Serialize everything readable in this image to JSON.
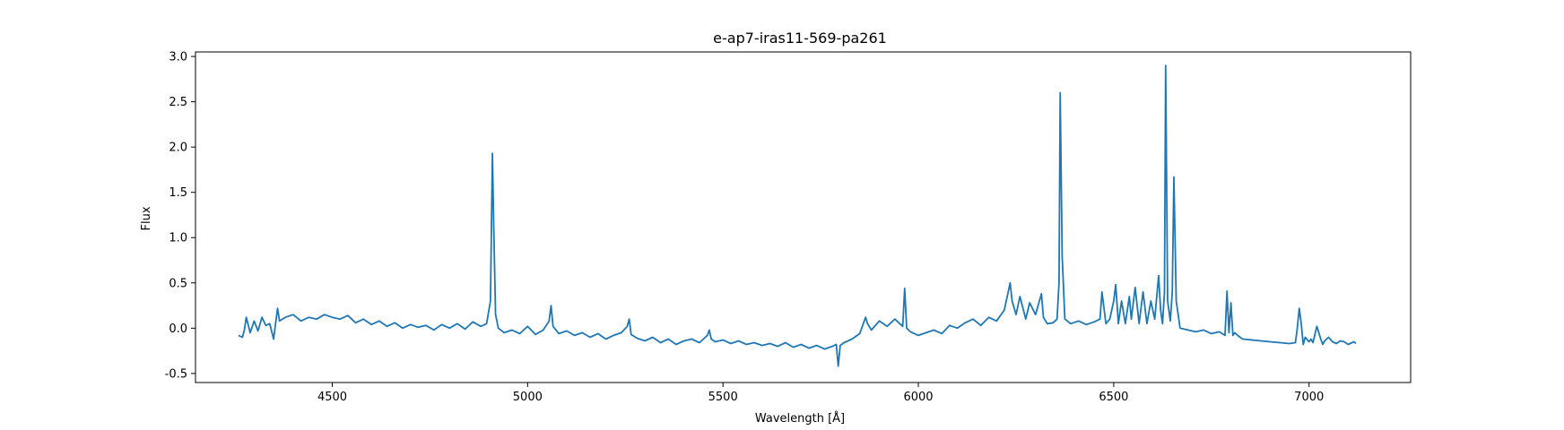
{
  "chart_data": {
    "type": "line",
    "title": "e-ap7-iras11-569-pa261",
    "xlabel": "Wavelength [Å]",
    "ylabel": "Flux",
    "xlim": [
      4150,
      7260
    ],
    "ylim": [
      -0.6,
      3.05
    ],
    "xticks": [
      4500,
      5000,
      5500,
      6000,
      6500,
      7000
    ],
    "yticks": [
      -0.5,
      0.0,
      0.5,
      1.0,
      1.5,
      2.0,
      2.5,
      3.0
    ],
    "grid": false,
    "line_color": "#1f77b4",
    "series": [
      {
        "x": [
          4260,
          4270,
          4275,
          4280,
          4290,
          4300,
          4310,
          4320,
          4330,
          4340,
          4350,
          4355,
          4360,
          4365,
          4380,
          4400,
          4420,
          4440,
          4460,
          4480,
          4500,
          4520,
          4540,
          4560,
          4580,
          4600,
          4620,
          4640,
          4660,
          4680,
          4700,
          4720,
          4740,
          4760,
          4780,
          4800,
          4820,
          4840,
          4860,
          4880,
          4895,
          4905,
          4910,
          4913,
          4918,
          4925,
          4940,
          4960,
          4980,
          5000,
          5020,
          5040,
          5055,
          5060,
          5065,
          5080,
          5100,
          5120,
          5140,
          5160,
          5180,
          5200,
          5220,
          5240,
          5255,
          5260,
          5265,
          5280,
          5300,
          5320,
          5340,
          5360,
          5380,
          5400,
          5420,
          5440,
          5460,
          5465,
          5470,
          5480,
          5500,
          5520,
          5540,
          5560,
          5580,
          5600,
          5620,
          5640,
          5660,
          5680,
          5700,
          5720,
          5740,
          5760,
          5780,
          5790,
          5795,
          5800,
          5810,
          5830,
          5850,
          5865,
          5870,
          5880,
          5900,
          5920,
          5940,
          5960,
          5965,
          5970,
          5980,
          6000,
          6020,
          6040,
          6060,
          6080,
          6100,
          6120,
          6140,
          6160,
          6180,
          6200,
          6220,
          6235,
          6240,
          6250,
          6260,
          6275,
          6285,
          6300,
          6315,
          6320,
          6330,
          6345,
          6355,
          6360,
          6363,
          6368,
          6375,
          6390,
          6410,
          6430,
          6450,
          6465,
          6470,
          6480,
          6490,
          6500,
          6505,
          6512,
          6520,
          6530,
          6540,
          6545,
          6555,
          6565,
          6575,
          6585,
          6595,
          6605,
          6615,
          6620,
          6625,
          6630,
          6633,
          6638,
          6645,
          6650,
          6654,
          6660,
          6670,
          6690,
          6710,
          6730,
          6750,
          6770,
          6785,
          6790,
          6795,
          6800,
          6805,
          6810,
          6820,
          6830,
          6900,
          6950,
          6965,
          6970,
          6975,
          6980,
          6985,
          6990,
          7000,
          7005,
          7010,
          7020,
          7030,
          7035,
          7040,
          7050,
          7060,
          7070,
          7080,
          7090,
          7100,
          7110,
          7115,
          7120
        ],
        "y": [
          -0.08,
          -0.1,
          -0.02,
          0.12,
          -0.05,
          0.08,
          -0.03,
          0.12,
          0.03,
          0.05,
          -0.12,
          0.05,
          0.22,
          0.08,
          0.12,
          0.15,
          0.08,
          0.12,
          0.1,
          0.15,
          0.12,
          0.1,
          0.14,
          0.06,
          0.1,
          0.04,
          0.08,
          0.02,
          0.06,
          0.0,
          0.04,
          0.01,
          0.03,
          -0.02,
          0.04,
          0.0,
          0.05,
          -0.01,
          0.07,
          0.02,
          0.05,
          0.3,
          1.93,
          1.2,
          0.15,
          0.0,
          -0.05,
          -0.02,
          -0.06,
          0.02,
          -0.07,
          -0.02,
          0.08,
          0.25,
          0.02,
          -0.06,
          -0.03,
          -0.08,
          -0.05,
          -0.1,
          -0.06,
          -0.12,
          -0.08,
          -0.05,
          0.02,
          0.1,
          -0.07,
          -0.11,
          -0.14,
          -0.1,
          -0.16,
          -0.12,
          -0.18,
          -0.14,
          -0.12,
          -0.16,
          -0.08,
          -0.02,
          -0.12,
          -0.15,
          -0.13,
          -0.17,
          -0.14,
          -0.18,
          -0.16,
          -0.19,
          -0.17,
          -0.2,
          -0.16,
          -0.21,
          -0.18,
          -0.22,
          -0.19,
          -0.23,
          -0.2,
          -0.18,
          -0.42,
          -0.19,
          -0.16,
          -0.12,
          -0.06,
          0.12,
          0.05,
          -0.02,
          0.08,
          0.02,
          0.1,
          0.02,
          0.44,
          0.0,
          -0.04,
          -0.08,
          -0.05,
          -0.02,
          -0.06,
          0.03,
          0.0,
          0.06,
          0.1,
          0.03,
          0.12,
          0.08,
          0.2,
          0.5,
          0.3,
          0.15,
          0.35,
          0.1,
          0.28,
          0.15,
          0.38,
          0.12,
          0.05,
          0.06,
          0.1,
          0.5,
          2.6,
          0.8,
          0.1,
          0.05,
          0.08,
          0.04,
          0.07,
          0.1,
          0.4,
          0.05,
          0.1,
          0.3,
          0.48,
          0.05,
          0.3,
          0.05,
          0.35,
          0.1,
          0.45,
          0.05,
          0.4,
          0.05,
          0.3,
          0.1,
          0.58,
          0.2,
          0.05,
          0.4,
          2.9,
          0.3,
          0.08,
          0.4,
          1.67,
          0.3,
          0.0,
          -0.02,
          -0.04,
          -0.02,
          -0.06,
          -0.04,
          -0.08,
          0.41,
          -0.05,
          0.28,
          -0.08,
          -0.05,
          -0.09,
          -0.12,
          -0.15,
          -0.17,
          -0.16,
          0.0,
          0.22,
          0.05,
          -0.18,
          -0.1,
          -0.15,
          -0.12,
          -0.16,
          0.02,
          -0.12,
          -0.18,
          -0.14,
          -0.1,
          -0.15,
          -0.17,
          -0.14,
          -0.15,
          -0.18,
          -0.16,
          -0.15,
          -0.17
        ]
      }
    ]
  }
}
